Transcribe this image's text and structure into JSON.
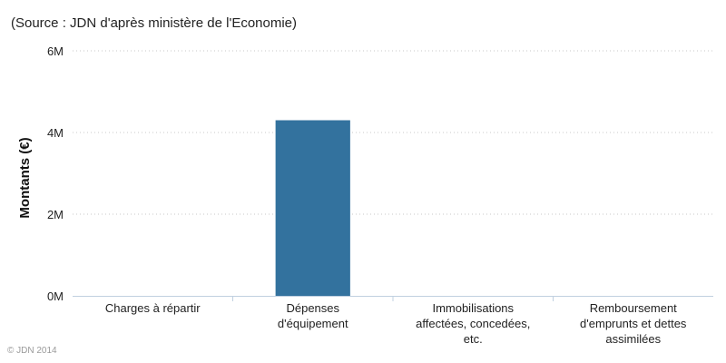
{
  "source_note": "(Source : JDN d'après ministère de l'Economie)",
  "credit": "© JDN 2014",
  "colors": {
    "bar": "#33729e",
    "grid": "#c8c8c8",
    "axis": "#c0d0e0"
  },
  "chart_data": {
    "type": "bar",
    "title": "",
    "xlabel": "",
    "ylabel": "Montants (€)",
    "ylim": [
      0,
      6000000
    ],
    "yticks": [
      {
        "value": 0,
        "label": "0M"
      },
      {
        "value": 2000000,
        "label": "2M"
      },
      {
        "value": 4000000,
        "label": "4M"
      },
      {
        "value": 6000000,
        "label": "6M"
      }
    ],
    "grid": true,
    "legend": "none",
    "categories": [
      [
        "Charges à répartir"
      ],
      [
        "Dépenses",
        "d'équipement"
      ],
      [
        "Immobilisations",
        "affectées, concedées,",
        "etc."
      ],
      [
        "Remboursement",
        "d'emprunts et dettes",
        "assimilées"
      ]
    ],
    "values": [
      0,
      4300000,
      0,
      0
    ]
  }
}
